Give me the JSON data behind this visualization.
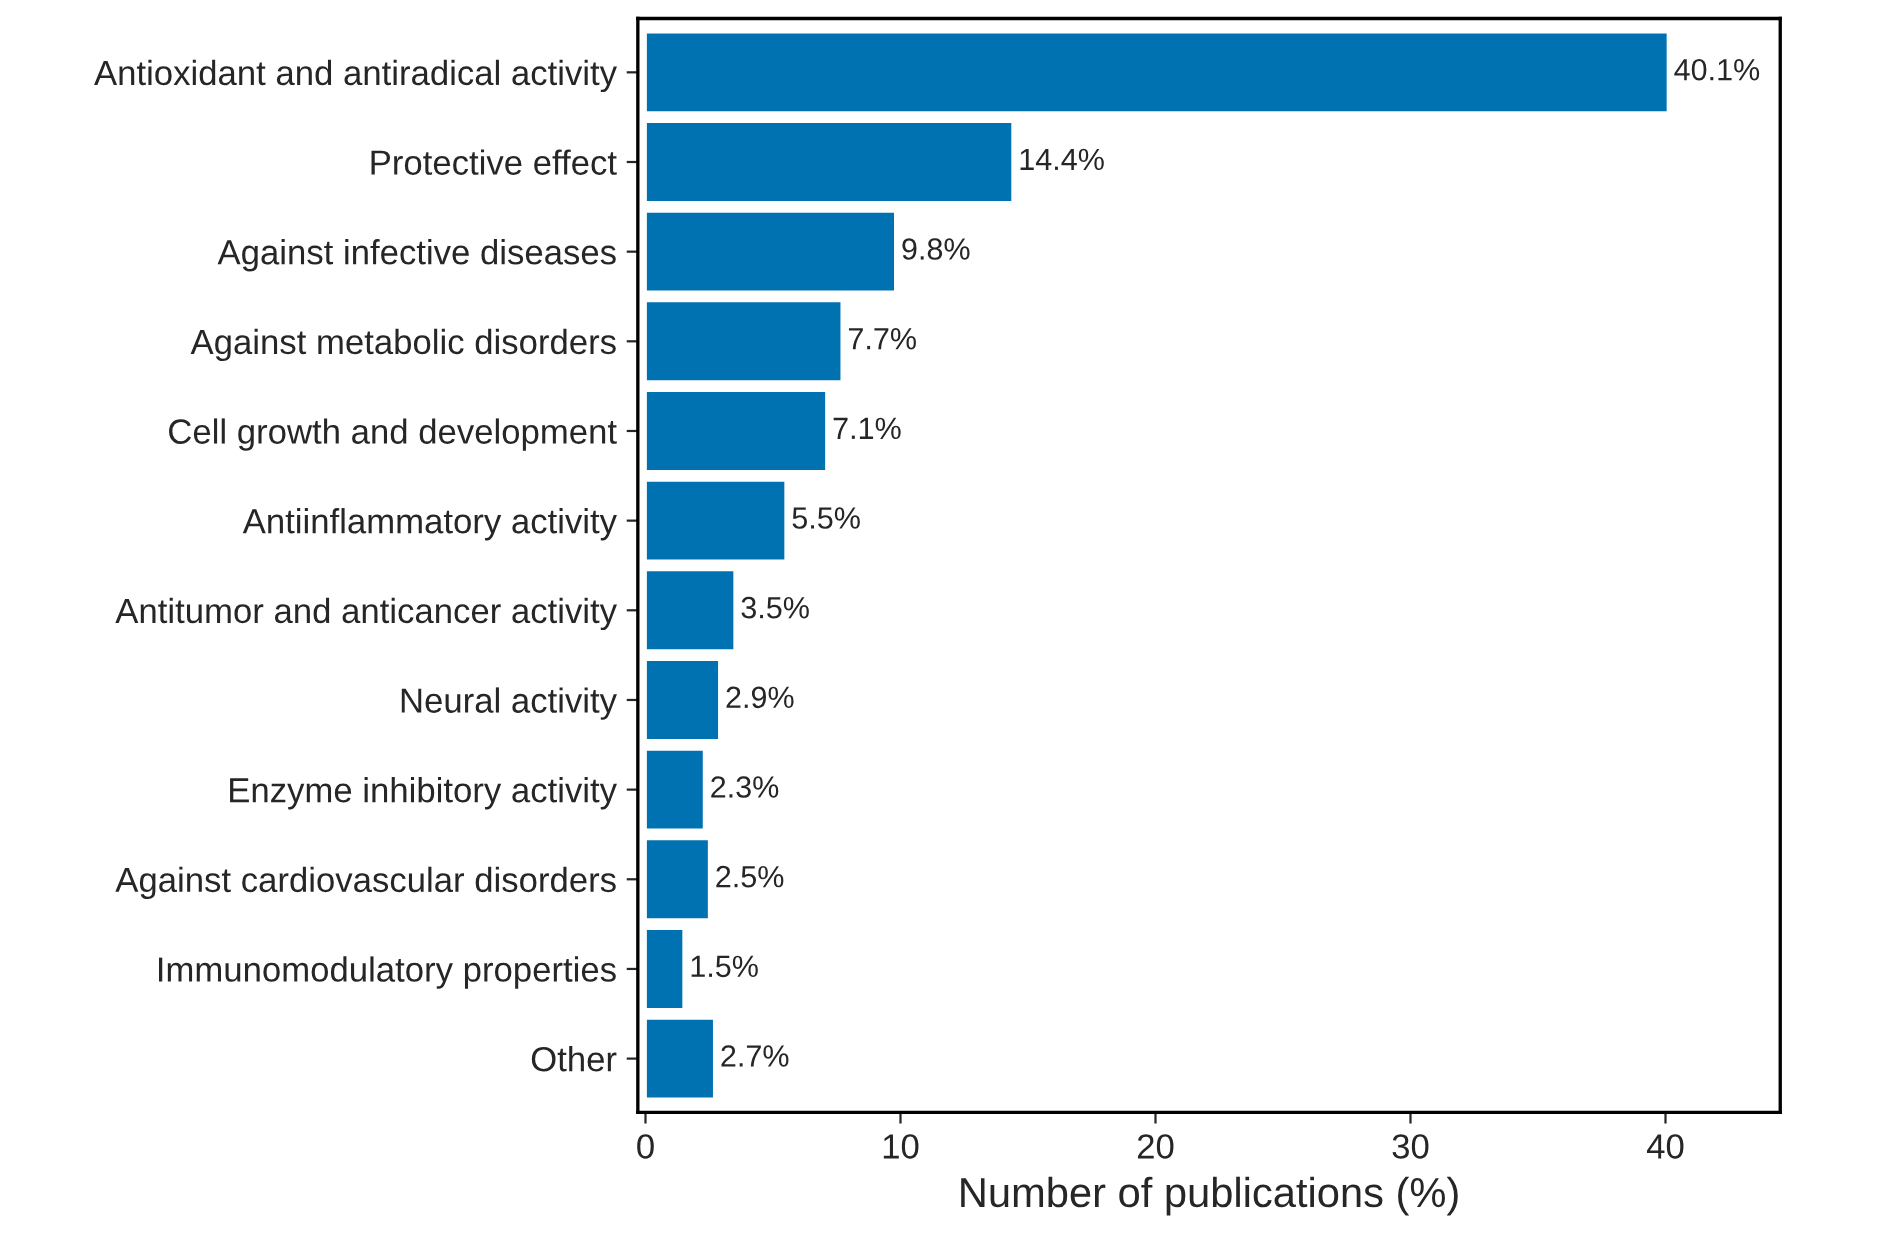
{
  "chart_data": {
    "type": "bar",
    "orientation": "horizontal",
    "xlabel": "Number of publications (%)",
    "categories": [
      "Antioxidant and antiradical activity",
      "Protective effect",
      "Against infective diseases",
      "Against metabolic disorders",
      "Cell growth and development",
      "Antiinflammatory activity",
      "Antitumor and anticancer activity",
      "Neural activity",
      "Enzyme inhibitory activity",
      "Against cardiovascular disorders",
      "Immunomodulatory properties",
      "Other"
    ],
    "values": [
      40.1,
      14.4,
      9.8,
      7.7,
      7.1,
      5.5,
      3.5,
      2.9,
      2.3,
      2.5,
      1.5,
      2.7
    ],
    "value_labels": [
      "40.1%",
      "14.4%",
      "9.8%",
      "7.7%",
      "7.1%",
      "5.5%",
      "3.5%",
      "2.9%",
      "2.3%",
      "2.5%",
      "1.5%",
      "2.7%"
    ],
    "color": "#0072b2",
    "xlim": [
      -0.3,
      44.5
    ],
    "xticks": [
      0,
      10,
      20,
      30,
      40
    ],
    "grid": false,
    "legend": false
  }
}
